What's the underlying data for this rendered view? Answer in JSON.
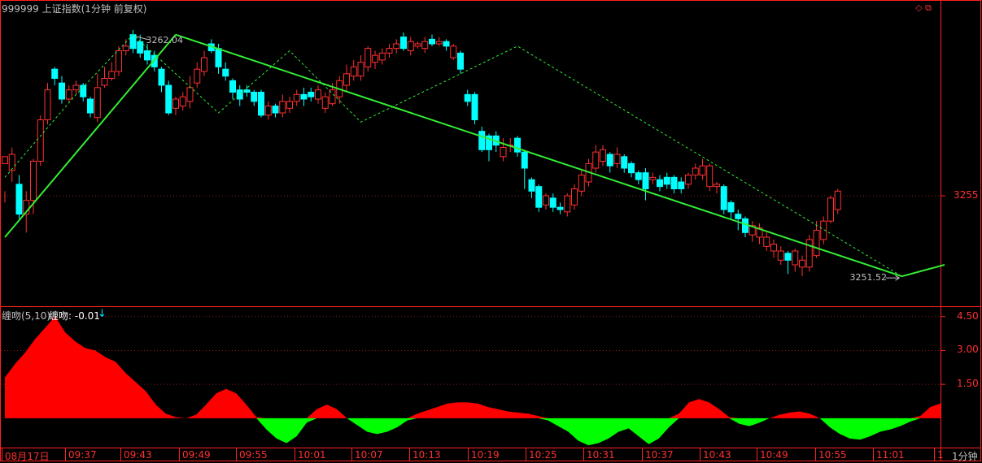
{
  "header": {
    "title": "999999 上证指数(1分钟 前复权)",
    "icons": "◇ ⧉"
  },
  "indicator": {
    "label": "缠吻(5,10)",
    "value_text": "缠吻: -0.01",
    "arrow": "↓",
    "colors": {
      "positive": "#ff0000",
      "negative": "#00ff00"
    }
  },
  "time_axis": {
    "labels": [
      "08月17日",
      "09:37",
      "09:43",
      "09:49",
      "09:55",
      "10:01",
      "10:07",
      "10:13",
      "10:19",
      "10:25",
      "10:31",
      "10:37",
      "10:43",
      "10:49",
      "10:55",
      "11:01",
      "1"
    ],
    "timeframe": "1分钟"
  },
  "annotations": {
    "high": "3262.04",
    "low": "3251.52"
  },
  "colors": {
    "up": "#ff3030",
    "down": "#00ffff",
    "trend": "#33ee33",
    "frame": "#ff2020",
    "grid": "#7a1010"
  },
  "chart_data": [
    {
      "type": "candlestick",
      "title": "999999 上证指数(1分钟 前复权)",
      "y_tick_labels": [
        "3255"
      ],
      "ylim": [
        3250.2,
        3262.8
      ],
      "x_tick_labels": [
        "08月17日",
        "09:37",
        "09:43",
        "09:49",
        "09:55",
        "10:01",
        "10:07",
        "10:13",
        "10:19",
        "10:25",
        "10:31",
        "10:37",
        "10:43",
        "10:49",
        "10:55",
        "11:01"
      ],
      "candles": [
        [
          3256.4,
          3256.7,
          3255.2,
          3254.7
        ],
        [
          3256.1,
          3256.8,
          3257.1,
          3255.6
        ],
        [
          3255.5,
          3254.2,
          3255.9,
          3254.0
        ],
        [
          3254.2,
          3254.8,
          3255.2,
          3253.4
        ],
        [
          3254.8,
          3256.5,
          3256.6,
          3254.2
        ],
        [
          3256.5,
          3258.3,
          3258.5,
          3256.3
        ],
        [
          3258.3,
          3259.6,
          3259.9,
          3258.1
        ],
        [
          3260.5,
          3260.1,
          3260.6,
          3259.8
        ],
        [
          3259.9,
          3259.2,
          3260.2,
          3259.0
        ],
        [
          3259.2,
          3259.6,
          3259.8,
          3259.1
        ],
        [
          3259.6,
          3259.8,
          3260.0,
          3259.4
        ],
        [
          3259.8,
          3259.3,
          3259.9,
          3259.1
        ],
        [
          3259.2,
          3258.6,
          3259.3,
          3258.4
        ],
        [
          3258.4,
          3259.7,
          3260.3,
          3258.2
        ],
        [
          3259.8,
          3260.1,
          3260.6,
          3259.7
        ],
        [
          3260.1,
          3260.4,
          3260.8,
          3260.0
        ],
        [
          3260.4,
          3261.3,
          3261.5,
          3260.2
        ],
        [
          3261.3,
          3261.5,
          3261.8,
          3261.1
        ],
        [
          3262.0,
          3261.4,
          3262.2,
          3261.2
        ],
        [
          3261.7,
          3261.2,
          3262.0,
          3261.0
        ],
        [
          3261.3,
          3260.9,
          3261.6,
          3260.7
        ],
        [
          3261.1,
          3260.6,
          3261.3,
          3260.4
        ],
        [
          3260.5,
          3259.8,
          3260.6,
          3259.5
        ],
        [
          3259.8,
          3258.6,
          3260.0,
          3258.5
        ],
        [
          3258.8,
          3259.2,
          3259.3,
          3258.5
        ],
        [
          3258.9,
          3259.3,
          3259.5,
          3258.7
        ],
        [
          3259.1,
          3259.7,
          3260.2,
          3258.8
        ],
        [
          3259.9,
          3260.5,
          3260.8,
          3259.7
        ],
        [
          3260.4,
          3261.0,
          3261.3,
          3260.2
        ],
        [
          3261.6,
          3261.3,
          3261.8,
          3261.2
        ],
        [
          3261.4,
          3260.6,
          3261.6,
          3260.3
        ],
        [
          3260.5,
          3260.2,
          3260.8,
          3260.0
        ],
        [
          3260.0,
          3259.5,
          3260.1,
          3259.2
        ],
        [
          3259.6,
          3259.2,
          3259.8,
          3258.9
        ],
        [
          3259.6,
          3259.5,
          3259.8,
          3259.3
        ],
        [
          3259.5,
          3259.1,
          3259.6,
          3258.9
        ],
        [
          3259.5,
          3258.5,
          3259.6,
          3258.4
        ],
        [
          3258.5,
          3258.9,
          3259.1,
          3258.3
        ],
        [
          3258.9,
          3258.6,
          3259.0,
          3258.4
        ],
        [
          3258.6,
          3259.1,
          3259.4,
          3258.4
        ],
        [
          3258.8,
          3259.1,
          3259.3,
          3258.6
        ],
        [
          3259.1,
          3259.4,
          3259.6,
          3258.9
        ],
        [
          3259.4,
          3259.2,
          3259.7,
          3258.9
        ],
        [
          3259.5,
          3259.3,
          3259.7,
          3259.1
        ],
        [
          3259.2,
          3259.6,
          3259.8,
          3259.0
        ],
        [
          3258.8,
          3259.3,
          3259.5,
          3258.6
        ],
        [
          3259.0,
          3259.6,
          3259.9,
          3258.9
        ],
        [
          3259.3,
          3260.0,
          3260.2,
          3259.0
        ],
        [
          3259.8,
          3260.3,
          3260.7,
          3259.5
        ],
        [
          3260.2,
          3260.6,
          3260.9,
          3260.0
        ],
        [
          3260.2,
          3260.8,
          3261.1,
          3260.0
        ],
        [
          3260.6,
          3261.4,
          3261.5,
          3260.4
        ],
        [
          3260.8,
          3261.1,
          3261.3,
          3260.5
        ],
        [
          3260.9,
          3261.2,
          3261.4,
          3260.7
        ],
        [
          3261.2,
          3261.4,
          3261.6,
          3261.0
        ],
        [
          3261.4,
          3261.6,
          3261.8,
          3261.2
        ],
        [
          3261.9,
          3261.4,
          3262.1,
          3261.3
        ],
        [
          3261.3,
          3261.7,
          3261.9,
          3261.1
        ],
        [
          3261.5,
          3261.6,
          3261.7,
          3261.4
        ],
        [
          3261.4,
          3261.7,
          3261.9,
          3261.2
        ],
        [
          3261.8,
          3261.6,
          3262.0,
          3261.5
        ],
        [
          3261.6,
          3261.7,
          3261.9,
          3261.5
        ],
        [
          3261.7,
          3261.5,
          3261.8,
          3261.3
        ],
        [
          3261.0,
          3261.5,
          3261.6,
          3260.9
        ],
        [
          3261.2,
          3260.5,
          3261.3,
          3260.3
        ],
        [
          3259.4,
          3259.1,
          3259.6,
          3258.9
        ],
        [
          3259.4,
          3258.3,
          3259.5,
          3258.1
        ],
        [
          3257.8,
          3257.0,
          3258.0,
          3256.9
        ],
        [
          3257.6,
          3257.0,
          3257.7,
          3256.5
        ],
        [
          3257.6,
          3257.2,
          3257.8,
          3256.9
        ],
        [
          3256.7,
          3257.1,
          3257.5,
          3256.5
        ],
        [
          3257.2,
          3257.2,
          3257.5,
          3256.9
        ],
        [
          3257.5,
          3256.9,
          3257.6,
          3256.7
        ],
        [
          3256.9,
          3256.2,
          3257.0,
          3255.3
        ],
        [
          3255.7,
          3255.2,
          3255.8,
          3254.9
        ],
        [
          3255.4,
          3254.5,
          3255.5,
          3254.3
        ],
        [
          3254.6,
          3255.0,
          3255.1,
          3254.4
        ],
        [
          3254.9,
          3254.5,
          3255.1,
          3254.3
        ],
        [
          3254.5,
          3254.4,
          3254.7,
          3254.2
        ],
        [
          3254.3,
          3255.0,
          3255.1,
          3254.1
        ],
        [
          3254.6,
          3255.3,
          3255.5,
          3254.4
        ],
        [
          3255.2,
          3255.9,
          3256.1,
          3255.0
        ],
        [
          3255.6,
          3256.4,
          3256.6,
          3255.4
        ],
        [
          3256.2,
          3256.9,
          3257.2,
          3256.0
        ],
        [
          3256.5,
          3257.0,
          3257.2,
          3256.3
        ],
        [
          3256.8,
          3256.3,
          3256.9,
          3256.0
        ],
        [
          3256.4,
          3256.8,
          3257.1,
          3256.2
        ],
        [
          3256.7,
          3256.2,
          3256.8,
          3256.0
        ],
        [
          3256.4,
          3256.0,
          3256.5,
          3255.8
        ],
        [
          3256.0,
          3255.7,
          3256.1,
          3255.5
        ],
        [
          3256.0,
          3255.3,
          3256.2,
          3254.8
        ],
        [
          3255.7,
          3255.8,
          3256.0,
          3255.5
        ],
        [
          3255.7,
          3255.4,
          3255.9,
          3255.2
        ],
        [
          3255.8,
          3255.5,
          3256.0,
          3255.3
        ],
        [
          3255.8,
          3255.3,
          3255.9,
          3255.1
        ],
        [
          3255.6,
          3255.3,
          3255.8,
          3255.1
        ],
        [
          3255.5,
          3255.9,
          3256.0,
          3255.3
        ],
        [
          3255.9,
          3256.2,
          3256.4,
          3255.7
        ],
        [
          3255.9,
          3256.3,
          3256.6,
          3255.7
        ],
        [
          3255.4,
          3256.3,
          3256.4,
          3255.2
        ],
        [
          3255.4,
          3255.5,
          3255.6,
          3255.1
        ],
        [
          3255.4,
          3254.4,
          3255.5,
          3254.2
        ],
        [
          3254.7,
          3254.3,
          3254.8,
          3254.0
        ],
        [
          3254.2,
          3254.0,
          3254.4,
          3253.5
        ],
        [
          3254.0,
          3253.4,
          3254.1,
          3253.2
        ],
        [
          3253.3,
          3253.7,
          3253.9,
          3253.0
        ],
        [
          3253.2,
          3253.6,
          3253.8,
          3252.9
        ],
        [
          3252.8,
          3253.2,
          3253.4,
          3252.6
        ],
        [
          3252.6,
          3252.9,
          3253.1,
          3252.3
        ],
        [
          3252.2,
          3252.6,
          3252.8,
          3252.0
        ],
        [
          3252.5,
          3252.2,
          3252.6,
          3251.6
        ],
        [
          3252.0,
          3252.6,
          3252.7,
          3251.7
        ],
        [
          3251.9,
          3252.2,
          3252.4,
          3251.5
        ],
        [
          3251.9,
          3253.1,
          3253.3,
          3251.7
        ],
        [
          3252.4,
          3253.5,
          3253.9,
          3252.3
        ],
        [
          3253.1,
          3253.9,
          3254.1,
          3252.9
        ],
        [
          3253.9,
          3254.9,
          3255.0,
          3253.8
        ],
        [
          3254.4,
          3255.2,
          3255.3,
          3254.2
        ]
      ],
      "zigzag": [
        [
          0,
          3255.8
        ],
        [
          10,
          3259.4
        ],
        [
          18,
          3262.0
        ],
        [
          30,
          3258.6
        ],
        [
          40,
          3261.3
        ],
        [
          50,
          3258.2
        ],
        [
          72,
          3261.5
        ],
        [
          126,
          3251.5
        ]
      ],
      "trendlines": [
        {
          "from": [
            0,
            3253.2
          ],
          "to": [
            24,
            3262.0
          ]
        },
        {
          "from": [
            24,
            3262.0
          ],
          "to": [
            126,
            3251.5
          ]
        },
        {
          "from": [
            126,
            3251.5
          ],
          "to": [
            132,
            3252.0
          ]
        }
      ]
    },
    {
      "type": "area",
      "title": "缠吻(5,10)",
      "y_tick_labels": [
        "4.50",
        "3.00",
        "1.50"
      ],
      "ylim": [
        -1.3,
        4.85
      ],
      "values": [
        1.8,
        2.4,
        2.9,
        3.5,
        4.0,
        4.5,
        3.8,
        3.4,
        3.1,
        3.0,
        2.7,
        2.5,
        2.0,
        1.6,
        1.2,
        0.6,
        0.2,
        0.05,
        0.0,
        0.15,
        0.6,
        1.1,
        1.3,
        1.1,
        0.6,
        0.05,
        -0.5,
        -0.9,
        -1.1,
        -0.8,
        -0.2,
        0.4,
        0.6,
        0.4,
        0.0,
        -0.3,
        -0.6,
        -0.7,
        -0.6,
        -0.4,
        -0.1,
        0.2,
        0.35,
        0.5,
        0.65,
        0.7,
        0.7,
        0.65,
        0.5,
        0.4,
        0.3,
        0.25,
        0.2,
        0.1,
        -0.1,
        -0.35,
        -0.6,
        -1.0,
        -1.2,
        -1.1,
        -0.9,
        -0.6,
        -0.45,
        -0.8,
        -1.15,
        -0.9,
        -0.4,
        0.2,
        0.7,
        0.85,
        0.7,
        0.4,
        0.05,
        -0.25,
        -0.35,
        -0.2,
        0.0,
        0.15,
        0.25,
        0.3,
        0.2,
        0.0,
        -0.4,
        -0.7,
        -0.9,
        -0.95,
        -0.8,
        -0.6,
        -0.5,
        -0.35,
        -0.15,
        0.1,
        0.5,
        0.65
      ]
    }
  ]
}
